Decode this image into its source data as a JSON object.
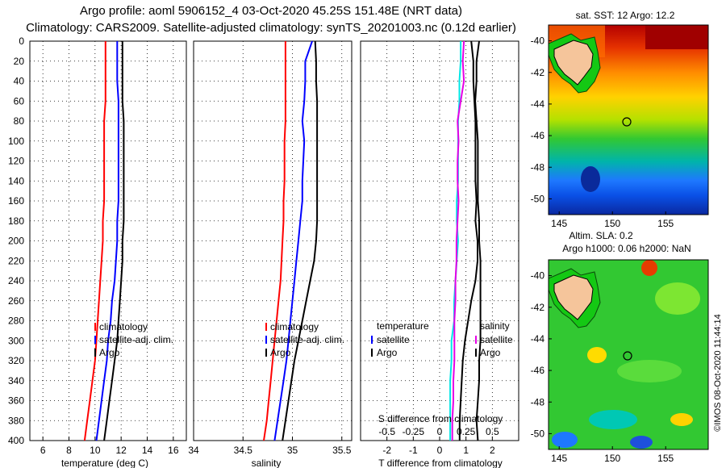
{
  "title_line1": "Argo profile: aoml 5906152_4 03-Oct-2020 45.25S 151.48E (NRT data)",
  "title_line2": "Climatology: CARS2009. Satellite-adjusted climatology: synTS_20201003.nc (0.12d earlier)",
  "timestamp": "©IMOS 08-Oct-2020 11:44:14",
  "colors": {
    "climatology": "#ff0000",
    "satellite": "#0000ff",
    "argo": "#000000",
    "t_satellite": "#00e6e6",
    "s_satellite": "#e600e6"
  },
  "legend": {
    "climatology": "climatology",
    "satellite_adj": "satellite-adj. clim.",
    "argo": "Argo",
    "temperature": "temperature",
    "salinity": "salinity",
    "satellite": "satellite"
  },
  "chart_data": [
    {
      "type": "line",
      "panel": "temperature",
      "xlabel": "temperature (deg C)",
      "ylabel": "",
      "xlim": [
        5,
        17
      ],
      "xticks": [
        6,
        8,
        10,
        12,
        14,
        16
      ],
      "ylim": [
        400,
        0
      ],
      "yticks": [
        0,
        20,
        40,
        60,
        80,
        100,
        120,
        140,
        160,
        180,
        200,
        220,
        240,
        260,
        280,
        300,
        320,
        340,
        360,
        380,
        400
      ],
      "depth": [
        0,
        20,
        40,
        60,
        80,
        100,
        120,
        140,
        160,
        180,
        200,
        220,
        240,
        260,
        280,
        300,
        320,
        340,
        360,
        380,
        400
      ],
      "series": [
        {
          "name": "climatology",
          "values": [
            10.8,
            10.8,
            10.8,
            10.8,
            10.7,
            10.7,
            10.7,
            10.7,
            10.7,
            10.6,
            10.6,
            10.5,
            10.4,
            10.3,
            10.2,
            10.1,
            10.0,
            9.8,
            9.6,
            9.4,
            9.2
          ]
        },
        {
          "name": "satellite-adj. clim.",
          "values": [
            11.7,
            11.7,
            11.7,
            11.8,
            11.8,
            11.8,
            11.8,
            11.8,
            11.8,
            11.7,
            11.7,
            11.6,
            11.5,
            11.3,
            11.2,
            11.0,
            10.9,
            10.7,
            10.5,
            10.3,
            10.1
          ]
        },
        {
          "name": "Argo",
          "values": [
            12.1,
            12.1,
            12.1,
            12.1,
            12.2,
            12.2,
            12.2,
            12.2,
            12.2,
            12.2,
            12.1,
            12.1,
            12.0,
            11.9,
            11.8,
            11.7,
            11.5,
            11.3,
            11.1,
            10.9,
            10.7
          ]
        }
      ]
    },
    {
      "type": "line",
      "panel": "salinity",
      "xlabel": "salinity",
      "xlim": [
        34,
        35.6
      ],
      "xticks": [
        34,
        34.5,
        35,
        35.5
      ],
      "ylim": [
        400,
        0
      ],
      "depth": [
        0,
        20,
        40,
        60,
        80,
        100,
        120,
        140,
        160,
        180,
        200,
        220,
        240,
        260,
        280,
        300,
        320,
        340,
        360,
        380,
        400
      ],
      "series": [
        {
          "name": "climatology",
          "values": [
            34.93,
            34.93,
            34.93,
            34.93,
            34.93,
            34.92,
            34.92,
            34.92,
            34.91,
            34.91,
            34.9,
            34.89,
            34.88,
            34.86,
            34.84,
            34.82,
            34.8,
            34.78,
            34.76,
            34.74,
            34.71
          ]
        },
        {
          "name": "satellite-adj. clim.",
          "values": [
            35.2,
            35.13,
            35.13,
            35.12,
            35.1,
            35.12,
            35.11,
            35.1,
            35.1,
            35.08,
            35.06,
            35.04,
            35.02,
            35.0,
            34.98,
            34.96,
            34.94,
            34.91,
            34.88,
            34.85,
            34.82
          ]
        },
        {
          "name": "Argo",
          "values": [
            35.23,
            35.24,
            35.24,
            35.25,
            35.25,
            35.25,
            35.25,
            35.25,
            35.25,
            35.25,
            35.24,
            35.22,
            35.18,
            35.14,
            35.1,
            35.06,
            35.02,
            34.99,
            34.96,
            34.93,
            34.9
          ]
        }
      ]
    },
    {
      "type": "line",
      "panel": "difference",
      "xlabel": "T difference from climatology",
      "xlabel_top": "S difference from climatology",
      "xlim": [
        -3,
        3
      ],
      "xticks": [
        -2,
        -1,
        0,
        1,
        2
      ],
      "s_xlim": [
        -0.75,
        0.75
      ],
      "s_xticks": [
        -0.5,
        -0.25,
        0,
        0.25,
        0.5
      ],
      "ylim": [
        400,
        0
      ],
      "depth": [
        0,
        20,
        40,
        60,
        80,
        100,
        120,
        140,
        160,
        180,
        200,
        220,
        240,
        260,
        280,
        300,
        320,
        340,
        360,
        380,
        400
      ],
      "series": [
        {
          "name": "temperature satellite",
          "values": [
            0.8,
            0.8,
            0.75,
            0.75,
            0.7,
            0.7,
            0.7,
            0.7,
            0.65,
            0.65,
            0.7,
            0.65,
            0.6,
            0.55,
            0.55,
            0.45,
            0.45,
            0.4,
            0.4,
            0.4,
            0.4
          ]
        },
        {
          "name": "temperature Argo",
          "values": [
            1.5,
            1.4,
            1.4,
            1.35,
            1.4,
            1.45,
            1.45,
            1.45,
            1.45,
            1.5,
            1.5,
            1.55,
            1.55,
            1.55,
            1.55,
            1.55,
            1.5,
            1.5,
            1.45,
            1.4,
            1.45
          ]
        },
        {
          "name": "salinity satellite",
          "values": [
            0.23,
            0.22,
            0.23,
            0.2,
            0.17,
            0.18,
            0.17,
            0.17,
            0.18,
            0.17,
            0.16,
            0.16,
            0.15,
            0.15,
            0.14,
            0.14,
            0.14,
            0.13,
            0.13,
            0.12,
            0.12
          ]
        },
        {
          "name": "salinity Argo",
          "values": [
            0.3,
            0.32,
            0.32,
            0.33,
            0.34,
            0.34,
            0.34,
            0.34,
            0.35,
            0.34,
            0.36,
            0.36,
            0.34,
            0.3,
            0.27,
            0.24,
            0.22,
            0.21,
            0.2,
            0.19,
            0.19
          ]
        }
      ]
    },
    {
      "type": "heatmap",
      "panel": "sst_map",
      "title": "sat. SST: 12 Argo: 12.2",
      "xlim": [
        144,
        159
      ],
      "ylim": [
        -51,
        -39
      ],
      "xticks": [
        145,
        150,
        155
      ],
      "yticks": [
        -40,
        -42,
        -44,
        -46,
        -48,
        -50
      ],
      "argo_position": [
        151.48,
        -45.25
      ]
    },
    {
      "type": "heatmap",
      "panel": "sla_map",
      "title_line1": "Altim. SLA: 0.2",
      "title_line2": "Argo h1000: 0.06 h2000: NaN",
      "xlim": [
        144,
        159
      ],
      "ylim": [
        -51,
        -39
      ],
      "xticks": [
        145,
        150,
        155
      ],
      "yticks": [
        -40,
        -42,
        -44,
        -46,
        -48,
        -50
      ],
      "argo_position": [
        151.48,
        -45.25
      ]
    }
  ]
}
